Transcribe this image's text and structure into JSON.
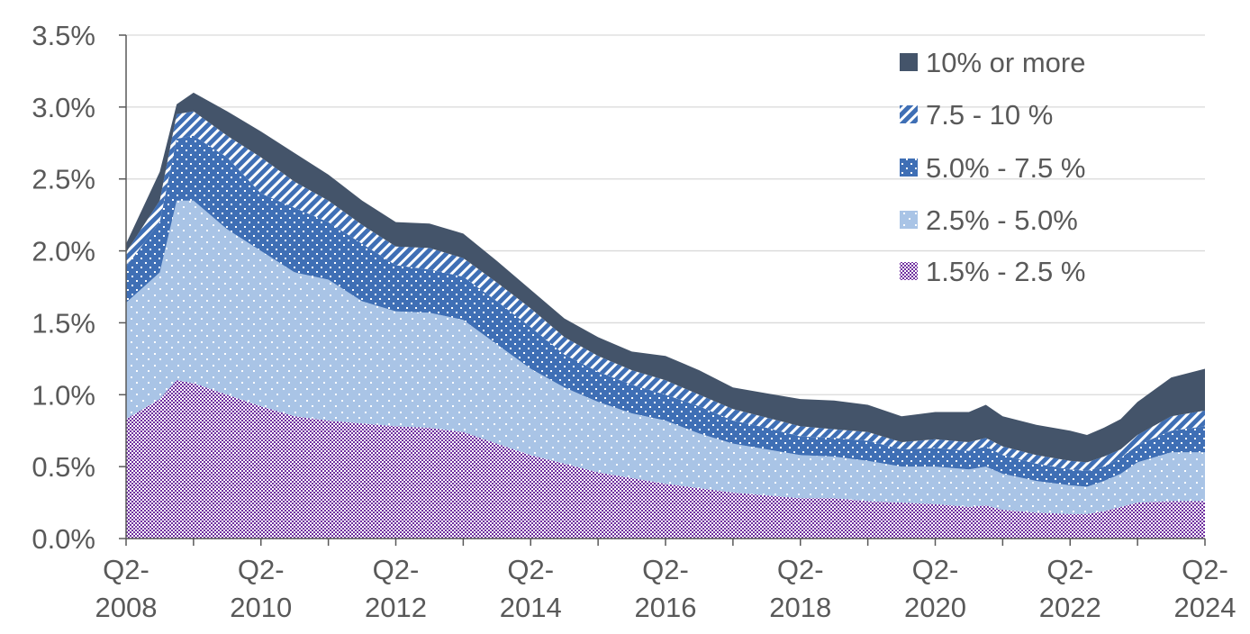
{
  "chart_data": {
    "type": "area",
    "stacked": true,
    "title": "",
    "xlabel": "",
    "ylabel": "",
    "ylim": [
      0,
      3.5
    ],
    "y_unit": "%",
    "y_ticks": [
      "0.0%",
      "0.5%",
      "1.0%",
      "1.5%",
      "2.0%",
      "2.5%",
      "3.0%",
      "3.5%"
    ],
    "x_tick_labels": [
      "Q2-2008",
      "Q2-2010",
      "Q2-2012",
      "Q2-2014",
      "Q2-2016",
      "Q2-2018",
      "Q2-2020",
      "Q2-2022",
      "Q2-2024"
    ],
    "grid": "horizontal",
    "legend_placement": "top-right",
    "x": [
      "Q2-2008",
      "Q4-2008",
      "Q1-2009",
      "Q2-2009",
      "Q4-2009",
      "Q2-2010",
      "Q4-2010",
      "Q2-2011",
      "Q4-2011",
      "Q2-2012",
      "Q4-2012",
      "Q2-2013",
      "Q4-2013",
      "Q2-2014",
      "Q4-2014",
      "Q2-2015",
      "Q4-2015",
      "Q2-2016",
      "Q4-2016",
      "Q2-2017",
      "Q4-2017",
      "Q2-2018",
      "Q4-2018",
      "Q2-2019",
      "Q4-2019",
      "Q2-2020",
      "Q4-2020",
      "Q1-2021",
      "Q2-2021",
      "Q4-2021",
      "Q2-2022",
      "Q3-2022",
      "Q4-2022",
      "Q1-2023",
      "Q2-2023",
      "Q4-2023",
      "Q2-2024"
    ],
    "series": [
      {
        "name": "1.5% - 2.5 %",
        "color": "#7030a0",
        "pattern": "checker",
        "values": [
          0.83,
          0.97,
          1.1,
          1.08,
          1.0,
          0.92,
          0.85,
          0.82,
          0.8,
          0.78,
          0.77,
          0.74,
          0.66,
          0.58,
          0.52,
          0.46,
          0.42,
          0.38,
          0.35,
          0.32,
          0.3,
          0.28,
          0.28,
          0.26,
          0.25,
          0.24,
          0.22,
          0.23,
          0.2,
          0.18,
          0.17,
          0.17,
          0.19,
          0.22,
          0.25,
          0.26,
          0.26
        ]
      },
      {
        "name": "2.5% - 5.0%",
        "color": "#a9c4e6",
        "pattern": "dots",
        "values": [
          0.81,
          0.88,
          1.25,
          1.27,
          1.15,
          1.08,
          1.0,
          0.98,
          0.85,
          0.8,
          0.8,
          0.78,
          0.69,
          0.6,
          0.53,
          0.49,
          0.45,
          0.44,
          0.38,
          0.34,
          0.32,
          0.3,
          0.29,
          0.28,
          0.25,
          0.26,
          0.26,
          0.27,
          0.25,
          0.22,
          0.2,
          0.19,
          0.21,
          0.23,
          0.28,
          0.34,
          0.34
        ]
      },
      {
        "name": "5.0% - 7.5 %",
        "color": "#3f6fb5",
        "pattern": "dots",
        "values": [
          0.25,
          0.35,
          0.43,
          0.45,
          0.5,
          0.4,
          0.45,
          0.4,
          0.4,
          0.32,
          0.3,
          0.3,
          0.3,
          0.29,
          0.23,
          0.21,
          0.2,
          0.18,
          0.19,
          0.16,
          0.15,
          0.13,
          0.13,
          0.14,
          0.12,
          0.13,
          0.13,
          0.14,
          0.13,
          0.12,
          0.11,
          0.11,
          0.1,
          0.11,
          0.12,
          0.15,
          0.18
        ]
      },
      {
        "name": "7.5 - 10 %",
        "color": "#3f6fb5",
        "pattern": "stripes",
        "values": [
          0.1,
          0.15,
          0.17,
          0.17,
          0.15,
          0.25,
          0.18,
          0.15,
          0.13,
          0.13,
          0.15,
          0.13,
          0.13,
          0.13,
          0.12,
          0.11,
          0.1,
          0.1,
          0.08,
          0.08,
          0.07,
          0.07,
          0.06,
          0.06,
          0.05,
          0.06,
          0.06,
          0.06,
          0.06,
          0.06,
          0.06,
          0.06,
          0.07,
          0.06,
          0.07,
          0.1,
          0.11
        ]
      },
      {
        "name": "10% or more",
        "color": "#44546a",
        "pattern": "solid",
        "values": [
          0.06,
          0.2,
          0.07,
          0.13,
          0.17,
          0.18,
          0.2,
          0.18,
          0.17,
          0.17,
          0.17,
          0.17,
          0.15,
          0.13,
          0.13,
          0.13,
          0.13,
          0.17,
          0.17,
          0.15,
          0.17,
          0.19,
          0.2,
          0.19,
          0.18,
          0.19,
          0.21,
          0.23,
          0.21,
          0.21,
          0.21,
          0.19,
          0.2,
          0.21,
          0.23,
          0.27,
          0.29
        ]
      }
    ]
  }
}
